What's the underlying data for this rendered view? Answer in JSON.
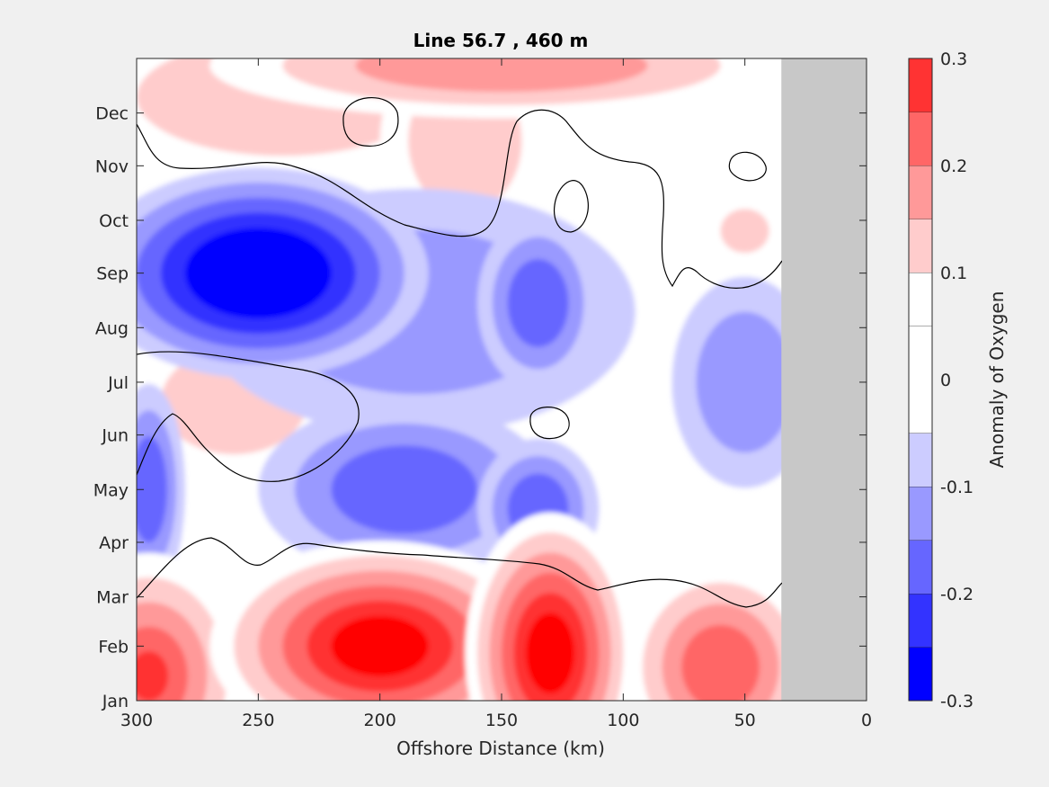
{
  "chart_data": {
    "type": "heatmap",
    "subtype": "filled-contour",
    "title": "Line 56.7 , 460 m",
    "xlabel": "Offshore Distance (km)",
    "ylabel": "",
    "colorbar_label": "Anomaly of Oxygen",
    "x_reversed": true,
    "xlim": [
      0,
      300
    ],
    "xticks": [
      "300",
      "250",
      "200",
      "150",
      "100",
      "50",
      "0"
    ],
    "yticks": [
      "Jan",
      "Feb",
      "Mar",
      "Apr",
      "May",
      "Jun",
      "Jul",
      "Aug",
      "Sep",
      "Oct",
      "Nov",
      "Dec"
    ],
    "colorbar_ticks": [
      "-0.3",
      "-0.2",
      "-0.1",
      "0",
      "0.1",
      "0.2",
      "0.3"
    ],
    "clim": [
      -0.3,
      0.3
    ],
    "levels": [
      -0.3,
      -0.25,
      -0.2,
      -0.15,
      -0.1,
      -0.05,
      0.05,
      0.1,
      0.15,
      0.2,
      0.25,
      0.3
    ],
    "level_colors": [
      "#0000ff",
      "#3333ff",
      "#6666ff",
      "#9999ff",
      "#ccccff",
      "#ffffff",
      "#ffffff",
      "#ffcccc",
      "#ff9999",
      "#ff6666",
      "#ff3333",
      "#ff0000"
    ],
    "no_data_color": "#c8c8c8",
    "data_extent_km": [
      35,
      300
    ],
    "features": [
      {
        "x": 295,
        "y": "Jan 15",
        "value": 0.25,
        "rx": 40,
        "ry": 70
      },
      {
        "x": 200,
        "y": "Feb 1",
        "value": 0.32,
        "rx": 70,
        "ry": 60
      },
      {
        "x": 130,
        "y": "Jan 28",
        "value": 0.32,
        "rx": 35,
        "ry": 80
      },
      {
        "x": 60,
        "y": "Jan 20",
        "value": 0.22,
        "rx": 40,
        "ry": 60
      },
      {
        "x": 250,
        "y": "Sep 1",
        "value": -0.32,
        "rx": 70,
        "ry": 60
      },
      {
        "x": 185,
        "y": "Aug 10",
        "value": -0.15,
        "rx": 90,
        "ry": 70
      },
      {
        "x": 135,
        "y": "Aug 15",
        "value": -0.2,
        "rx": 25,
        "ry": 50
      },
      {
        "x": 190,
        "y": "May 1",
        "value": -0.2,
        "rx": 60,
        "ry": 50
      },
      {
        "x": 135,
        "y": "Apr 20",
        "value": -0.2,
        "rx": 25,
        "ry": 40
      },
      {
        "x": 295,
        "y": "May 1",
        "value": -0.2,
        "rx": 15,
        "ry": 60
      },
      {
        "x": 50,
        "y": "Jul 1",
        "value": -0.13,
        "rx": 30,
        "ry": 60
      },
      {
        "x": 260,
        "y": "Jun 20",
        "value": 0.13,
        "rx": 45,
        "ry": 45
      },
      {
        "x": 165,
        "y": "Nov 15",
        "value": 0.13,
        "rx": 35,
        "ry": 60
      },
      {
        "x": 50,
        "y": "Sep 25",
        "value": 0.1,
        "rx": 20,
        "ry": 25
      },
      {
        "x": 240,
        "y": "Dec 10",
        "value": 0.12,
        "rx": 90,
        "ry": 50
      },
      {
        "x": 150,
        "y": "Dec 28",
        "value": 0.18,
        "rx": 120,
        "ry": 30
      },
      {
        "x": 255,
        "y": "Jun 1",
        "value": 0.02,
        "rx": 60,
        "ry": 60
      },
      {
        "x": 130,
        "y": "Jun 15",
        "value": 0.02,
        "rx": 40,
        "ry": 35
      },
      {
        "x": 75,
        "y": "Sep 25",
        "value": 0.03,
        "rx": 45,
        "ry": 90
      }
    ]
  }
}
